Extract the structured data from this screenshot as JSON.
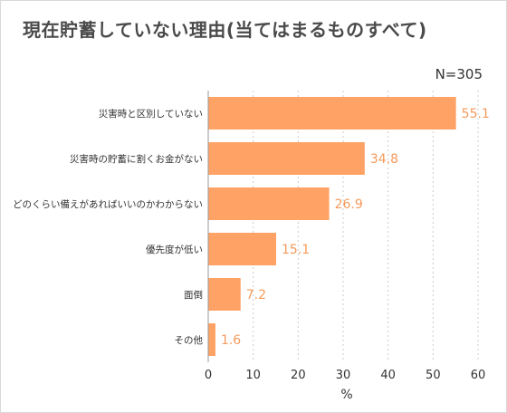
{
  "title": "現在貯蓄していない理由(当てはまるものすべて)",
  "sample_size": "N=305",
  "chart_data": {
    "type": "bar",
    "orientation": "horizontal",
    "categories": [
      "災害時と区別していない",
      "災害時の貯蓄に割くお金がない",
      "どのくらい備えがあればいいのかわからない",
      "優先度が低い",
      "面倒",
      "その他"
    ],
    "values": [
      55.1,
      34.8,
      26.9,
      15.1,
      7.2,
      1.6
    ],
    "value_labels": [
      "55.1",
      "34.8",
      "26.9",
      "15.1",
      "7.2",
      "1.6"
    ],
    "xlabel": "%",
    "xlim": [
      0,
      60
    ],
    "xticks": [
      "0",
      "10",
      "20",
      "30",
      "40",
      "50",
      "60"
    ],
    "grid": "vertical dotted",
    "colors": {
      "bar": "#FFA265",
      "value_label": "#F59A5C",
      "grid": "#cccccc",
      "axis": "#999999"
    }
  }
}
